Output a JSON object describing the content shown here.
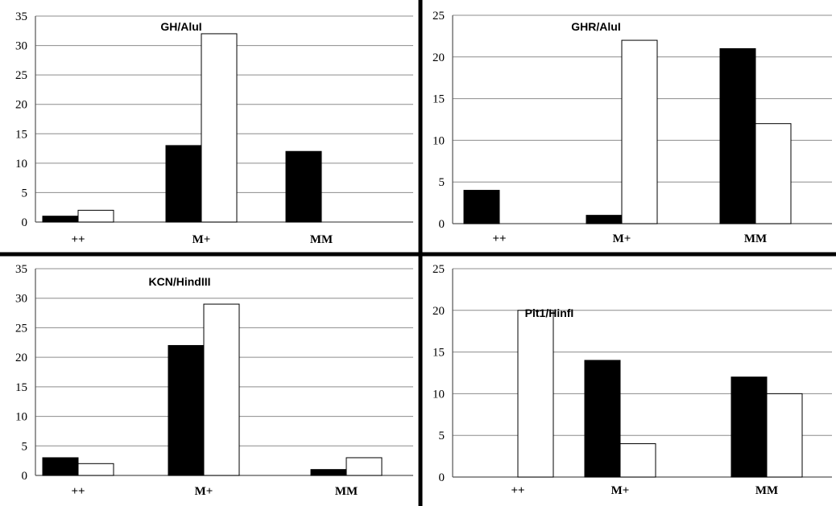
{
  "chart_data": [
    {
      "type": "bar",
      "title": "GH/AluI",
      "categories": [
        "++",
        "M+",
        "MM"
      ],
      "ylim": [
        0,
        35
      ],
      "yticks": [
        0,
        5,
        10,
        15,
        20,
        25,
        30,
        35
      ],
      "grid": true,
      "legend": "none",
      "series": [
        {
          "color": "#000000",
          "values": [
            1,
            13,
            12
          ]
        },
        {
          "color": "#ffffff",
          "values": [
            2,
            32,
            0
          ]
        }
      ]
    },
    {
      "type": "bar",
      "title": "GHR/AluI",
      "categories": [
        "++",
        "M+",
        "MM"
      ],
      "ylim": [
        0,
        25
      ],
      "yticks": [
        0,
        5,
        10,
        15,
        20,
        25
      ],
      "grid": true,
      "legend": "none",
      "series": [
        {
          "color": "#000000",
          "values": [
            4,
            1,
            21
          ]
        },
        {
          "color": "#ffffff",
          "values": [
            0,
            22,
            12
          ]
        }
      ]
    },
    {
      "type": "bar",
      "title": "KCN/HindIII",
      "categories": [
        "++",
        "M+",
        "MM"
      ],
      "ylim": [
        0,
        35
      ],
      "yticks": [
        0,
        5,
        10,
        15,
        20,
        25,
        30,
        35
      ],
      "grid": true,
      "legend": "none",
      "series": [
        {
          "color": "#000000",
          "values": [
            3,
            22,
            1
          ]
        },
        {
          "color": "#ffffff",
          "values": [
            2,
            29,
            3
          ]
        }
      ]
    },
    {
      "type": "bar",
      "title": "Pit1/HinfI",
      "categories": [
        "++",
        "M+",
        "MM"
      ],
      "ylim": [
        0,
        25
      ],
      "yticks": [
        0,
        5,
        10,
        15,
        20,
        25
      ],
      "grid": true,
      "legend": "none",
      "series": [
        {
          "color": "#000000",
          "values": [
            0,
            14,
            12
          ]
        },
        {
          "color": "#ffffff",
          "values": [
            20,
            4,
            10
          ]
        }
      ]
    }
  ]
}
